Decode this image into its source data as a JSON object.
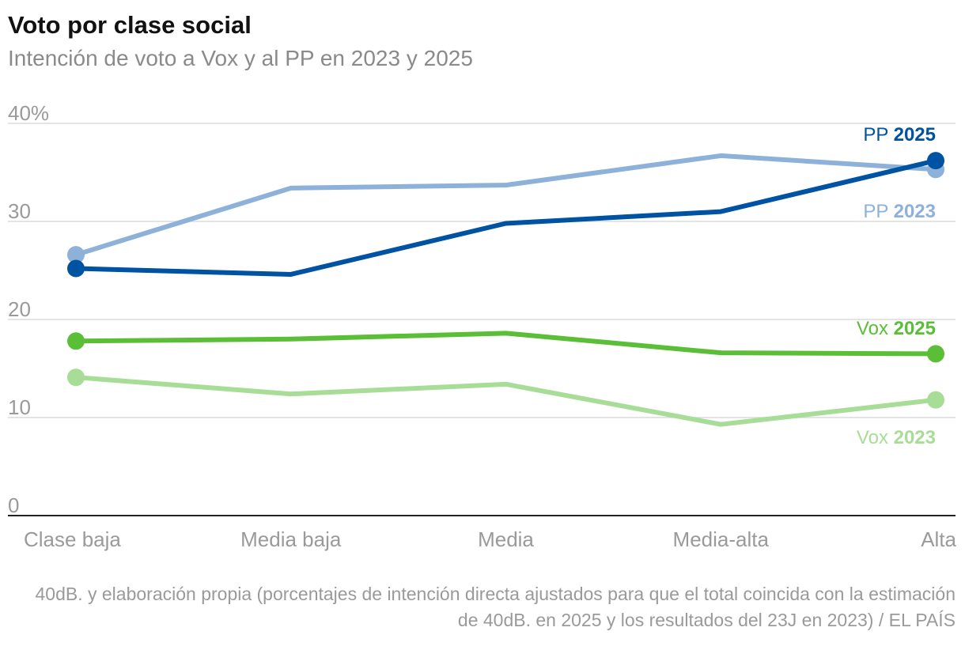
{
  "chart_data": {
    "type": "line",
    "title": "Voto por clase social",
    "subtitle": "Intención de voto a Vox y al PP en 2023 y 2025",
    "categories": [
      "Clase baja",
      "Media baja",
      "Media",
      "Media-alta",
      "Alta"
    ],
    "ylim": [
      0,
      40
    ],
    "yticks": [
      0,
      10,
      20,
      30,
      40
    ],
    "ytick_labels": [
      "0",
      "10",
      "20",
      "30",
      "40%"
    ],
    "series": [
      {
        "key": "vox2023",
        "name": "Vox",
        "year": "2023",
        "color": "#a8dd98",
        "values": [
          14.1,
          12.4,
          13.4,
          9.3,
          11.8
        ]
      },
      {
        "key": "pp2023",
        "name": "PP",
        "year": "2023",
        "color": "#8db1d9",
        "values": [
          26.6,
          33.4,
          33.7,
          36.7,
          35.3
        ]
      },
      {
        "key": "vox2025",
        "name": "Vox",
        "year": "2025",
        "color": "#5abf37",
        "values": [
          17.8,
          18.0,
          18.6,
          16.6,
          16.5
        ]
      },
      {
        "key": "pp2025",
        "name": "PP",
        "year": "2025",
        "color": "#0052a3",
        "values": [
          25.2,
          24.6,
          29.8,
          31.0,
          36.2
        ]
      }
    ],
    "source": "40dB. y elaboración propia (porcentajes de intención directa ajustados para que el total coincida con la estimación de 40dB. en 2025 y los resultados del 23J en 2023) / EL PAÍS"
  }
}
